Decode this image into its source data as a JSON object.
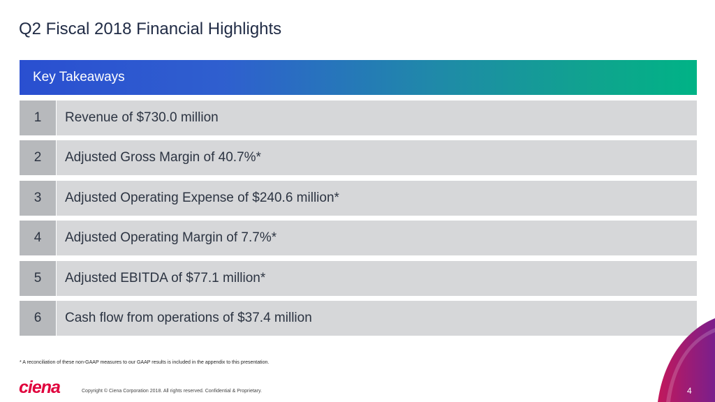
{
  "slide": {
    "title": "Q2 Fiscal 2018 Financial Highlights",
    "banner_label": "Key Takeaways",
    "items": [
      {
        "number": "1",
        "text": "Revenue of $730.0 million"
      },
      {
        "number": "2",
        "text": "Adjusted Gross Margin of 40.7%*"
      },
      {
        "number": "3",
        "text": "Adjusted Operating Expense of $240.6 million*"
      },
      {
        "number": "4",
        "text": "Adjusted Operating Margin of 7.7%*"
      },
      {
        "number": "5",
        "text": "Adjusted EBITDA of $77.1 million*"
      },
      {
        "number": "6",
        "text": "Cash flow from operations of $37.4 million"
      }
    ],
    "footnote": "* A reconciliation of these non-GAAP measures to our GAAP results is included in the appendix to this presentation.",
    "logo_text": "ciena",
    "copyright": "Copyright © Ciena Corporation 2018. All rights reserved. Confidential & Proprietary.",
    "page_number": "4"
  },
  "colors": {
    "banner_start": "#2a4fd0",
    "banner_end": "#00b386",
    "logo": "#e0003c",
    "row_number_bg": "#b7b9bc",
    "row_text_bg": "#d6d7d9",
    "swoosh_purple": "#7a1f8c",
    "swoosh_magenta": "#c2185b"
  }
}
